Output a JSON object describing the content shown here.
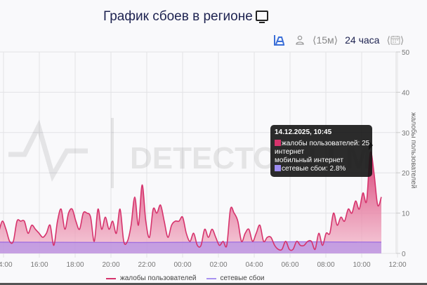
{
  "header": {
    "title": "График сбоев в регионе",
    "title_icon": "tv-icon"
  },
  "toolbar": {
    "chart_type_icon": "area-chart-icon",
    "user_icon": "user-icon",
    "interval_label": "⟨15м⟩",
    "range_label": "24 часа",
    "calendar_label": "⟨📅⟩"
  },
  "tooltip": {
    "title": "14.12.2025, 10:45",
    "rows": [
      {
        "label": "жалобы пользователей: 25",
        "color": "#d6336c"
      },
      {
        "label": "интернет",
        "color": null
      },
      {
        "label": "мобильный интернет",
        "color": null
      },
      {
        "label": "сетевые сбои: 2.8%",
        "color": "#9d8cf2"
      }
    ]
  },
  "watermark": "DETECTOR LLM",
  "legend": {
    "items": [
      {
        "label": "жалобы пользователей",
        "color": "#d6336c"
      },
      {
        "label": "сетевые сбои",
        "color": "#a892f0"
      }
    ]
  },
  "chart_data": {
    "type": "area",
    "title": "График сбоев в регионе",
    "xlabel": "",
    "ylabel": "жалобы пользователей",
    "ylim": [
      0,
      50
    ],
    "yticks": [
      0,
      10,
      20,
      30,
      40,
      50
    ],
    "xticks": [
      "14:00",
      "16:00",
      "18:00",
      "20:00",
      "22:00",
      "00:00",
      "02:00",
      "04:00",
      "06:00",
      "08:00",
      "10:00",
      "12:00"
    ],
    "grid": true,
    "legend_position": "bottom",
    "series": [
      {
        "name": "жалобы пользователей",
        "color": "#d6336c",
        "values": [
          5,
          8,
          6,
          3,
          3,
          8,
          8,
          8,
          5,
          7,
          6,
          5,
          4,
          5,
          7,
          2,
          8,
          11,
          6,
          10,
          11,
          8,
          6,
          10,
          10,
          9,
          3,
          11,
          6,
          9,
          6,
          8,
          5,
          11,
          3,
          3,
          7,
          14,
          7,
          17,
          8,
          4,
          11,
          10,
          12,
          8,
          4,
          7,
          8,
          8,
          9,
          5,
          3,
          5,
          2,
          2,
          6,
          4,
          6,
          4,
          2,
          3,
          2,
          11,
          10,
          8,
          3,
          5,
          6,
          3,
          5,
          7,
          3,
          4,
          4,
          2,
          1,
          1,
          3,
          1,
          1,
          3,
          2,
          2,
          3,
          3,
          1,
          5,
          2,
          5,
          5,
          10,
          7,
          9,
          8,
          11,
          10,
          13,
          11,
          15,
          13,
          25,
          20,
          12,
          14
        ],
        "x_start": "13:45",
        "x_end": "11:00"
      },
      {
        "name": "сетевые сбои",
        "color": "#a892f0",
        "unit": "%",
        "approx_level": 2.8
      }
    ]
  }
}
